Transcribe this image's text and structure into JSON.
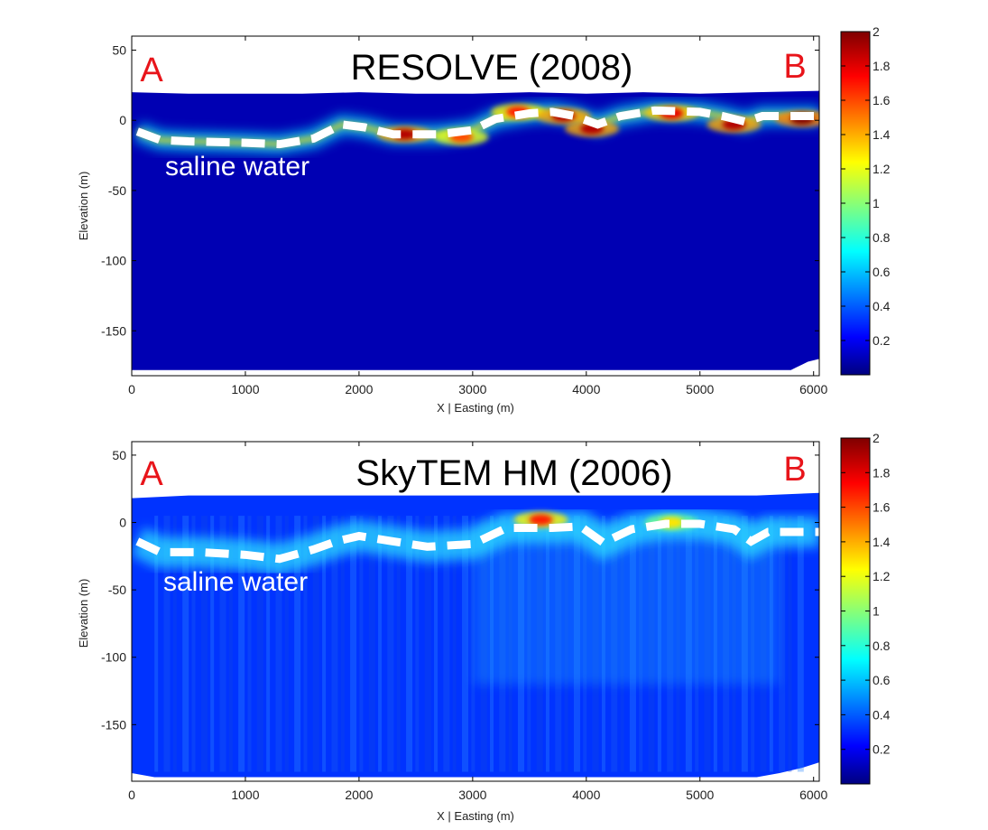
{
  "chart_data": [
    {
      "type": "heatmap",
      "title": "RESOLVE (2008)",
      "xlabel": "X | Easting (m)",
      "ylabel": "Elevation (m)",
      "xlim": [
        0,
        6050
      ],
      "ylim": [
        -182,
        60
      ],
      "xticks": [
        0,
        1000,
        2000,
        3000,
        4000,
        5000,
        6000
      ],
      "yticks": [
        50,
        0,
        -50,
        -100,
        -150
      ],
      "colorbar": {
        "range": [
          0,
          2
        ],
        "ticks": [
          0.2,
          0.4,
          0.6,
          0.8,
          1,
          1.2,
          1.4,
          1.6,
          1.8,
          2
        ]
      },
      "endpoint_labels": {
        "left": "A",
        "right": "B"
      },
      "annotation": "saline water",
      "model_top": [
        [
          0,
          20
        ],
        [
          500,
          19
        ],
        [
          1000,
          19
        ],
        [
          1500,
          19
        ],
        [
          2000,
          20
        ],
        [
          2500,
          19
        ],
        [
          3000,
          19
        ],
        [
          3500,
          20
        ],
        [
          4000,
          19
        ],
        [
          4500,
          20
        ],
        [
          5000,
          19
        ],
        [
          5500,
          20
        ],
        [
          6050,
          21
        ]
      ],
      "model_bottom": [
        [
          0,
          -178
        ],
        [
          5800,
          -178
        ],
        [
          5850,
          -176
        ],
        [
          5900,
          -174
        ],
        [
          5950,
          -172
        ],
        [
          6050,
          -170
        ]
      ],
      "interface_line": [
        [
          50,
          -8
        ],
        [
          250,
          -14
        ],
        [
          500,
          -15
        ],
        [
          1000,
          -16
        ],
        [
          1300,
          -17
        ],
        [
          1600,
          -13
        ],
        [
          1850,
          -3
        ],
        [
          2050,
          -5
        ],
        [
          2300,
          -10
        ],
        [
          2700,
          -10
        ],
        [
          3000,
          -7
        ],
        [
          3200,
          1
        ],
        [
          3500,
          5
        ],
        [
          3700,
          6
        ],
        [
          3900,
          3
        ],
        [
          4100,
          -3
        ],
        [
          4300,
          3
        ],
        [
          4600,
          7
        ],
        [
          5000,
          6
        ],
        [
          5200,
          3
        ],
        [
          5400,
          -1
        ],
        [
          5550,
          3
        ],
        [
          6050,
          3
        ]
      ],
      "high_values": [
        {
          "x": 2400,
          "y": -10,
          "value": 1.9
        },
        {
          "x": 2900,
          "y": -12,
          "value": 1.6
        },
        {
          "x": 3400,
          "y": 6,
          "value": 1.7
        },
        {
          "x": 3800,
          "y": 3,
          "value": 1.9
        },
        {
          "x": 4050,
          "y": -6,
          "value": 1.9
        },
        {
          "x": 4750,
          "y": 5,
          "value": 1.8
        },
        {
          "x": 5300,
          "y": -3,
          "value": 1.9
        },
        {
          "x": 5900,
          "y": 1,
          "value": 2.0
        }
      ],
      "background_value": 0.1
    },
    {
      "type": "heatmap",
      "title": "SkyTEM HM (2006)",
      "xlabel": "X | Easting (m)",
      "ylabel": "Elevation (m)",
      "xlim": [
        0,
        6050
      ],
      "ylim": [
        -192,
        60
      ],
      "xticks": [
        0,
        1000,
        2000,
        3000,
        4000,
        5000,
        6000
      ],
      "yticks": [
        50,
        0,
        -50,
        -100,
        -150
      ],
      "colorbar": {
        "range": [
          0,
          2
        ],
        "ticks": [
          0.2,
          0.4,
          0.6,
          0.8,
          1,
          1.2,
          1.4,
          1.6,
          1.8,
          2
        ]
      },
      "endpoint_labels": {
        "left": "A",
        "right": "B"
      },
      "annotation": "saline water",
      "model_top": [
        [
          0,
          18
        ],
        [
          500,
          20
        ],
        [
          1000,
          20
        ],
        [
          1500,
          20
        ],
        [
          2000,
          20
        ],
        [
          2500,
          20
        ],
        [
          3000,
          20
        ],
        [
          3500,
          20
        ],
        [
          4000,
          20
        ],
        [
          4500,
          20
        ],
        [
          5000,
          20
        ],
        [
          5500,
          20
        ],
        [
          6050,
          22
        ]
      ],
      "model_bottom": [
        [
          0,
          -186
        ],
        [
          200,
          -189
        ],
        [
          5500,
          -189
        ],
        [
          5700,
          -186
        ],
        [
          5900,
          -182
        ],
        [
          6050,
          -178
        ]
      ],
      "interface_line": [
        [
          50,
          -14
        ],
        [
          250,
          -22
        ],
        [
          600,
          -22
        ],
        [
          1000,
          -24
        ],
        [
          1300,
          -27
        ],
        [
          1600,
          -20
        ],
        [
          1800,
          -14
        ],
        [
          2000,
          -10
        ],
        [
          2300,
          -14
        ],
        [
          2600,
          -18
        ],
        [
          3000,
          -16
        ],
        [
          3300,
          -4
        ],
        [
          3700,
          -4
        ],
        [
          3950,
          -3
        ],
        [
          4150,
          -15
        ],
        [
          4400,
          -5
        ],
        [
          4700,
          -1
        ],
        [
          5000,
          -1
        ],
        [
          5300,
          -5
        ],
        [
          5450,
          -14
        ],
        [
          5600,
          -7
        ],
        [
          6050,
          -7
        ]
      ],
      "high_values": [
        {
          "x": 3600,
          "y": 2,
          "value": 1.7
        },
        {
          "x": 4750,
          "y": 0,
          "value": 1.3
        }
      ],
      "background_value": 0.35
    }
  ]
}
